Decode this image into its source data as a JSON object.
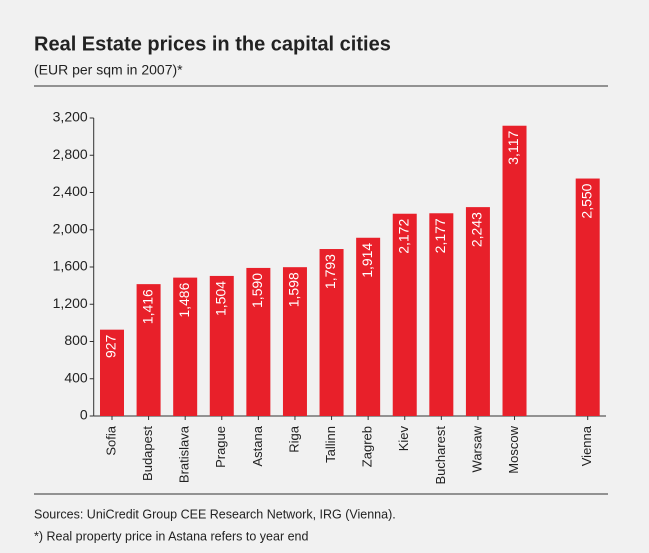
{
  "chart_data": {
    "type": "bar",
    "title": "Real Estate prices in the capital cities",
    "subtitle": "(EUR per sqm in 2007)*",
    "categories": [
      "Sofia",
      "Budapest",
      "Bratislava",
      "Prague",
      "Astana",
      "Riga",
      "Tallinn",
      "Zagreb",
      "Kiev",
      "Bucharest",
      "Warsaw",
      "Moscow",
      null,
      "Vienna"
    ],
    "values": [
      927,
      1416,
      1486,
      1504,
      1590,
      1598,
      1793,
      1914,
      2172,
      2177,
      2243,
      3117,
      null,
      2550
    ],
    "value_labels": [
      "927",
      "1,416",
      "1,486",
      "1,504",
      "1,590",
      "1,598",
      "1,793",
      "1,914",
      "2,172",
      "2,177",
      "2,243",
      "3,117",
      null,
      "2,550"
    ],
    "color": "#e8202a",
    "ylim": [
      0,
      3200
    ],
    "yticks": [
      0,
      400,
      800,
      {
        "value": 1200,
        "label": "1,200"
      },
      {
        "value": 1600,
        "label": "1,600"
      },
      {
        "value": 2000,
        "label": "2,000"
      },
      {
        "value": 2400,
        "label": "2,400"
      },
      {
        "value": 2800,
        "label": "2,800"
      },
      {
        "value": 3200,
        "label": "3,200"
      }
    ],
    "sources": "Sources: UniCredit Group CEE Research Network, IRG (Vienna).",
    "footnote": "*) Real property price in Astana refers to year end"
  }
}
